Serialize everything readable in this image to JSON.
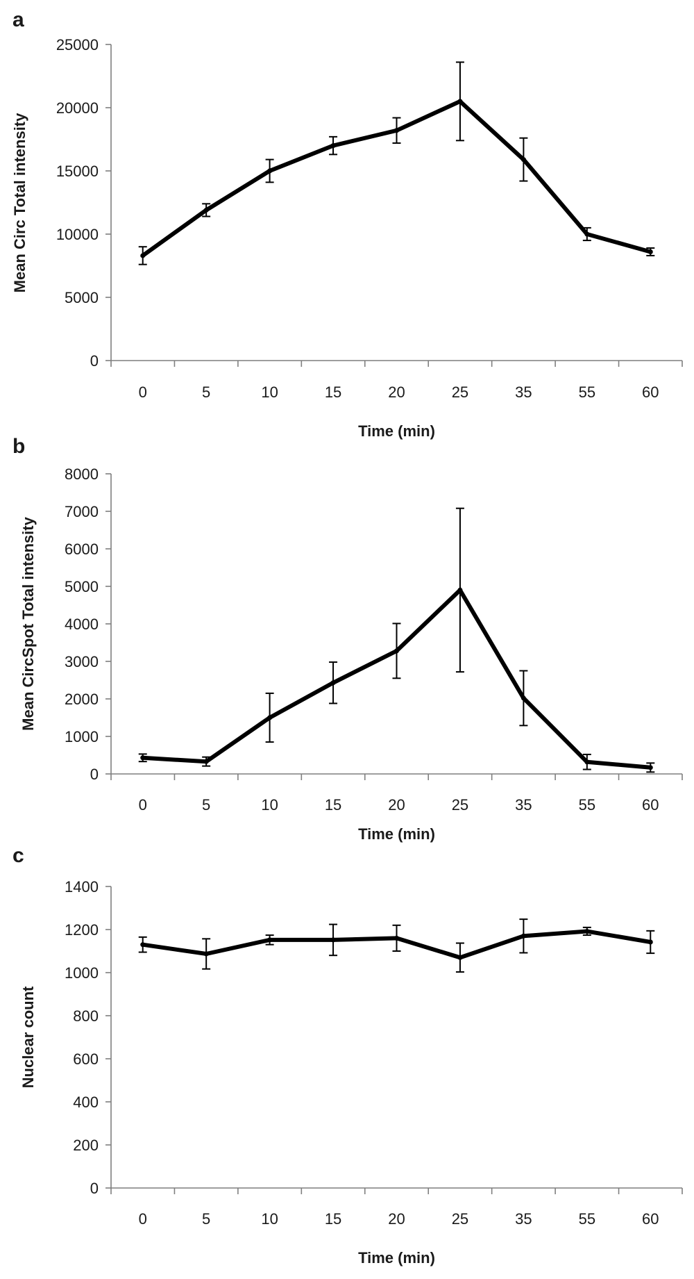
{
  "chart_data": [
    {
      "panel": "a",
      "type": "line",
      "title": "",
      "xlabel": "Time (min)",
      "ylabel": "Mean Circ Total intensity",
      "categories": [
        "0",
        "5",
        "10",
        "15",
        "20",
        "25",
        "35",
        "55",
        "60"
      ],
      "ylim": [
        0,
        25000
      ],
      "yticks": [
        "0",
        "5000",
        "10000",
        "15000",
        "20000",
        "25000"
      ],
      "series": [
        {
          "values": [
            8300,
            11900,
            15000,
            17000,
            18200,
            20500,
            15900,
            10000,
            8600
          ],
          "error": [
            700,
            500,
            900,
            700,
            1000,
            3100,
            1700,
            500,
            300
          ]
        }
      ],
      "grid": false,
      "colors": {
        "series": "#000000",
        "axis": "#7f7f7f"
      }
    },
    {
      "panel": "b",
      "type": "line",
      "title": "",
      "xlabel": "Time (min)",
      "ylabel": "Mean CircSpot Total intensity",
      "categories": [
        "0",
        "5",
        "10",
        "15",
        "20",
        "25",
        "35",
        "55",
        "60"
      ],
      "ylim": [
        0,
        8000
      ],
      "yticks": [
        "0",
        "1000",
        "2000",
        "3000",
        "4000",
        "5000",
        "6000",
        "7000",
        "8000"
      ],
      "series": [
        {
          "values": [
            430,
            330,
            1500,
            2430,
            3280,
            4900,
            2020,
            320,
            170
          ],
          "error": [
            100,
            120,
            650,
            550,
            730,
            2180,
            730,
            200,
            120
          ]
        }
      ],
      "grid": false,
      "colors": {
        "series": "#000000",
        "axis": "#7f7f7f"
      }
    },
    {
      "panel": "c",
      "type": "line",
      "title": "",
      "xlabel": "Time (min)",
      "ylabel": "Nuclear count",
      "categories": [
        "0",
        "5",
        "10",
        "15",
        "20",
        "25",
        "35",
        "55",
        "60"
      ],
      "ylim": [
        0,
        1400
      ],
      "yticks": [
        "0",
        "200",
        "400",
        "600",
        "800",
        "1000",
        "1200",
        "1400"
      ],
      "series": [
        {
          "values": [
            1130,
            1087,
            1152,
            1152,
            1160,
            1070,
            1170,
            1192,
            1142
          ],
          "error": [
            35,
            70,
            22,
            72,
            60,
            67,
            78,
            18,
            52
          ]
        }
      ],
      "grid": false,
      "colors": {
        "series": "#000000",
        "axis": "#7f7f7f"
      }
    }
  ]
}
